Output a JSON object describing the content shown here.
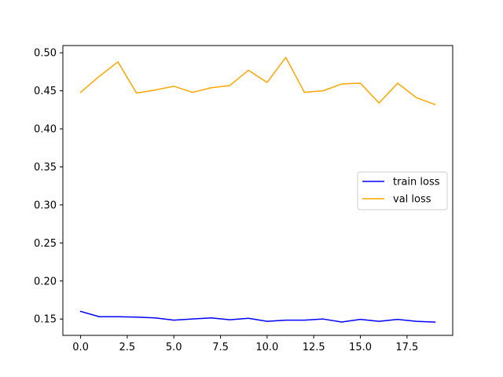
{
  "chart_data": {
    "type": "line",
    "x": [
      0,
      1,
      2,
      3,
      4,
      5,
      6,
      7,
      8,
      9,
      10,
      11,
      12,
      13,
      14,
      15,
      16,
      17,
      18,
      19
    ],
    "series": [
      {
        "name": "train loss",
        "color": "#0000ff",
        "values": [
          0.16,
          0.153,
          0.153,
          0.1525,
          0.1515,
          0.1485,
          0.15,
          0.1515,
          0.149,
          0.151,
          0.147,
          0.1485,
          0.1485,
          0.15,
          0.146,
          0.1495,
          0.147,
          0.1495,
          0.147,
          0.146
        ]
      },
      {
        "name": "val loss",
        "color": "#ffa500",
        "values": [
          0.448,
          0.469,
          0.488,
          0.447,
          0.451,
          0.456,
          0.448,
          0.454,
          0.457,
          0.477,
          0.461,
          0.494,
          0.448,
          0.45,
          0.459,
          0.46,
          0.434,
          0.46,
          0.441,
          0.432
        ]
      }
    ],
    "xlim": [
      -0.95,
      19.95
    ],
    "ylim": [
      0.1285,
      0.5095
    ],
    "xticks": [
      0,
      2.5,
      5,
      7.5,
      10,
      12.5,
      15,
      17.5
    ],
    "xtick_labels": [
      "0.0",
      "2.5",
      "5.0",
      "7.5",
      "10.0",
      "12.5",
      "15.0",
      "17.5"
    ],
    "yticks": [
      0.15,
      0.2,
      0.25,
      0.3,
      0.35,
      0.4,
      0.45,
      0.5
    ],
    "ytick_labels": [
      "0.15",
      "0.20",
      "0.25",
      "0.30",
      "0.35",
      "0.40",
      "0.45",
      "0.50"
    ],
    "grid": false,
    "legend": "center-right"
  }
}
